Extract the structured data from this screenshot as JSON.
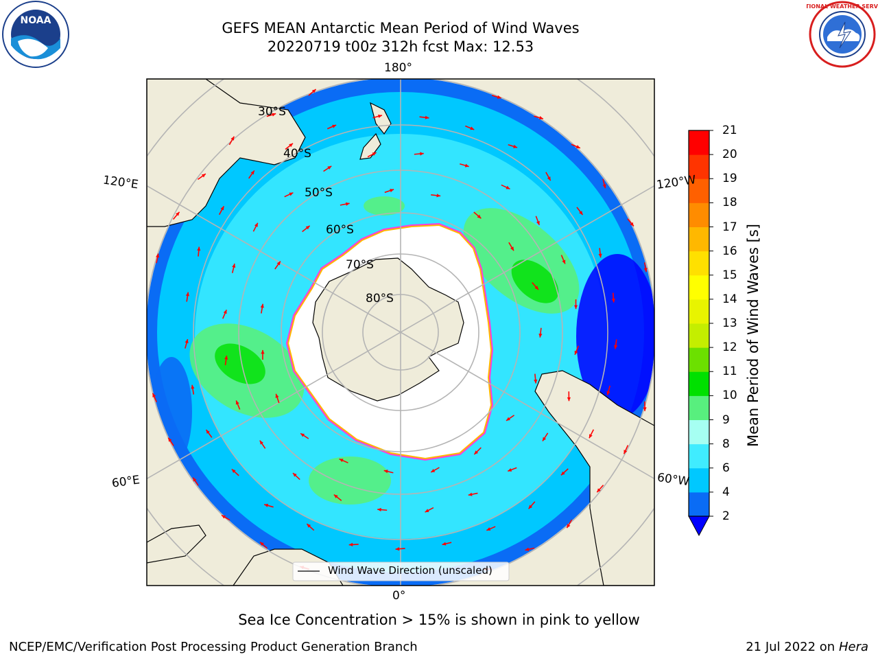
{
  "title": {
    "line1": "GEFS MEAN Antarctic Mean Period of Wind Waves",
    "line2": "20220719 t00z 312h fcst   Max: 12.53"
  },
  "logos": {
    "left": {
      "name": "NOARA-logo",
      "text": "NOAA"
    },
    "right": {
      "name": "national-weather-service-logo",
      "text": "NATIONAL WEATHER SERVICE"
    }
  },
  "map": {
    "projection": "south-polar-stereographic",
    "lat_labels": [
      "30°S",
      "40°S",
      "50°S",
      "60°S",
      "70°S",
      "80°S"
    ],
    "lon_labels": {
      "top": "180°",
      "bottom": "0°",
      "left_upper": "120°E",
      "left_lower": "60°E",
      "right_upper": "120°W",
      "right_lower": "60°W"
    },
    "legend": "Wind Wave Direction (unscaled)"
  },
  "colorbar": {
    "label": "Mean Period of Wind Waves [s]",
    "ticks": [
      "2",
      "4",
      "6",
      "8",
      "9",
      "10",
      "11",
      "12",
      "13",
      "14",
      "15",
      "16",
      "17",
      "18",
      "19",
      "20",
      "21"
    ],
    "colors": [
      "#0a6cf5",
      "#00c8ff",
      "#40ecff",
      "#a6fff2",
      "#58ef7e",
      "#00e000",
      "#6ce000",
      "#c4ee00",
      "#e8f400",
      "#ffff00",
      "#ffe000",
      "#ffb800",
      "#ff8c00",
      "#ff6000",
      "#ff3400",
      "#ff0000"
    ],
    "extend_color": "#0000ff"
  },
  "caption": "Sea Ice Concentration > 15% is shown in pink to yellow",
  "footer": {
    "left": "NCEP/EMC/Verification Post Processing Product Generation Branch",
    "right_date": "21 Jul 2022 on ",
    "right_host": "Hera"
  }
}
